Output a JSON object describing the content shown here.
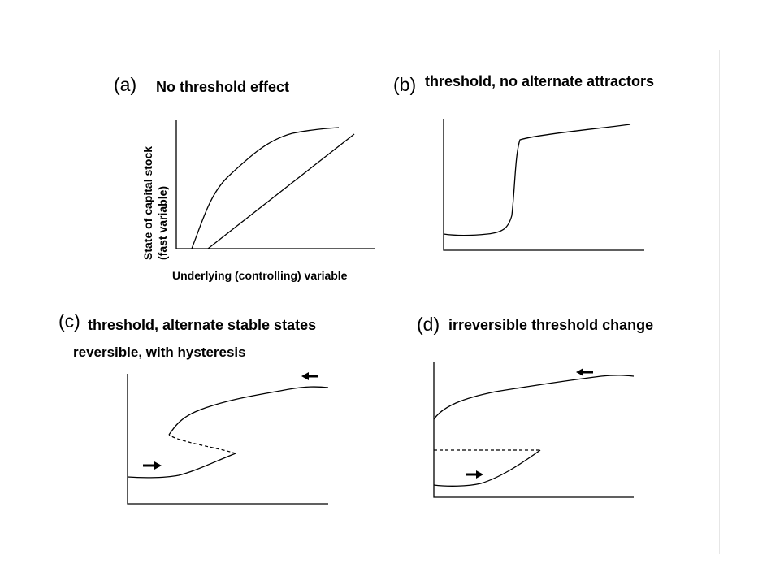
{
  "panels": {
    "a": {
      "tag": "(a)",
      "title": "No threshold effect",
      "xlabel": "Underlying (controlling) variable",
      "ylabel_line1": "State of capital stock",
      "ylabel_line2": "(fast variable)"
    },
    "b": {
      "tag": "(b)",
      "title": "threshold, no alternate attractors"
    },
    "c": {
      "tag": "(c)",
      "title": "threshold, alternate stable states",
      "subtitle": "reversible, with hysteresis"
    },
    "d": {
      "tag": "(d)",
      "title": "irreversible threshold change"
    }
  }
}
